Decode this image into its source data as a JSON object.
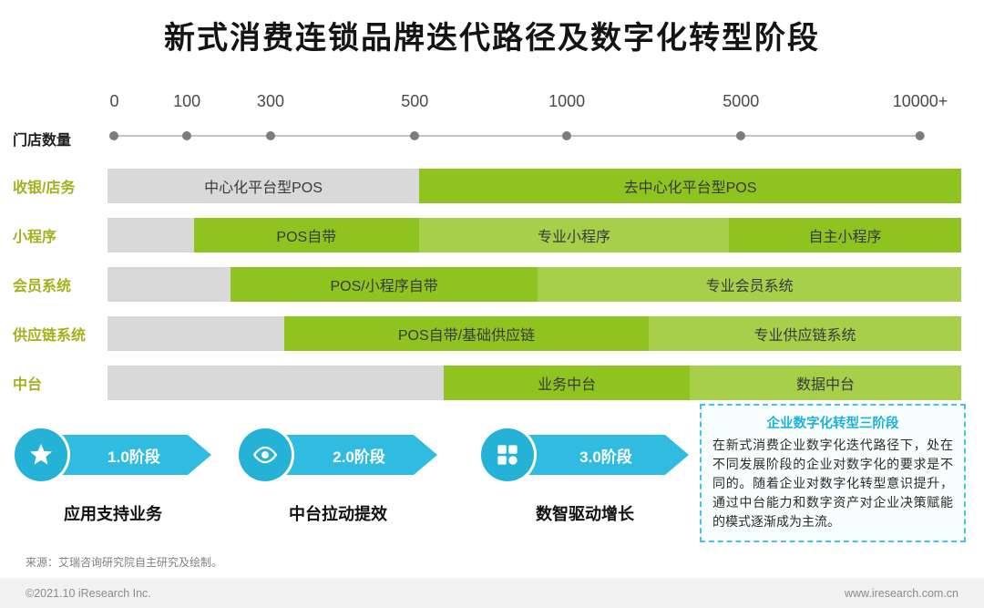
{
  "title": "新式消费连锁品牌迭代路径及数字化转型阶段",
  "colors": {
    "gray": "#d9d9d9",
    "green_bright": "#8fc320",
    "green_light": "#a7cf4a",
    "cyan": "#29b6d8",
    "olive": "#a3b11c"
  },
  "axis": {
    "label": "门店数量",
    "ticks": [
      {
        "value": "0",
        "pos_pct": 0.8
      },
      {
        "value": "100",
        "pos_pct": 9.3
      },
      {
        "value": "300",
        "pos_pct": 19.1
      },
      {
        "value": "500",
        "pos_pct": 36.0
      },
      {
        "value": "1000",
        "pos_pct": 53.8
      },
      {
        "value": "5000",
        "pos_pct": 74.2
      },
      {
        "value": "10000+",
        "pos_pct": 95.2
      }
    ]
  },
  "rows": [
    {
      "label": "收银/店务",
      "segments": [
        {
          "label": "中心化平台型POS",
          "width_pct": 36.5,
          "color": "gray"
        },
        {
          "label": "去中心化平台型POS",
          "width_pct": 63.5,
          "color": "green_bright"
        }
      ]
    },
    {
      "label": "小程序",
      "segments": [
        {
          "label": "",
          "width_pct": 10.1,
          "color": "gray"
        },
        {
          "label": "POS自带",
          "width_pct": 26.4,
          "color": "green_bright"
        },
        {
          "label": "专业小程序",
          "width_pct": 36.3,
          "color": "green_light"
        },
        {
          "label": "自主小程序",
          "width_pct": 27.2,
          "color": "green_bright"
        }
      ]
    },
    {
      "label": "会员系统",
      "segments": [
        {
          "label": "",
          "width_pct": 14.4,
          "color": "gray"
        },
        {
          "label": "POS/小程序自带",
          "width_pct": 36.0,
          "color": "green_bright"
        },
        {
          "label": "专业会员系统",
          "width_pct": 49.6,
          "color": "green_light"
        }
      ]
    },
    {
      "label": "供应链系统",
      "segments": [
        {
          "label": "",
          "width_pct": 20.7,
          "color": "gray"
        },
        {
          "label": "POS自带/基础供应链",
          "width_pct": 42.7,
          "color": "green_bright"
        },
        {
          "label": "专业供应链系统",
          "width_pct": 36.6,
          "color": "green_light"
        }
      ]
    },
    {
      "label": "中台",
      "segments": [
        {
          "label": "",
          "width_pct": 39.4,
          "color": "gray"
        },
        {
          "label": "业务中台",
          "width_pct": 28.8,
          "color": "green_bright"
        },
        {
          "label": "数据中台",
          "width_pct": 31.8,
          "color": "green_light"
        }
      ]
    }
  ],
  "stages": [
    {
      "badge": "1.0阶段",
      "icon": "star-icon",
      "caption": "应用支持业务"
    },
    {
      "badge": "2.0阶段",
      "icon": "eye-icon",
      "caption": "中台拉动提效"
    },
    {
      "badge": "3.0阶段",
      "icon": "grid-icon",
      "caption": "数智驱动增长"
    }
  ],
  "note": {
    "title": "企业数字化转型三阶段",
    "body": "在新式消费企业数字化迭代路径下，处在不同发展阶段的企业对数字化的要求是不同的。随着企业对数字化转型意识提升，通过中台能力和数字资产对企业决策赋能的模式逐渐成为主流。"
  },
  "source": "来源：艾瑞咨询研究院自主研究及绘制。",
  "footer": {
    "copyright": "©2021.10 iResearch Inc.",
    "website": "www.iresearch.com.cn"
  },
  "chart_data": {
    "type": "table",
    "title": "新式消费连锁品牌迭代路径及数字化转型阶段",
    "x_axis": {
      "label": "门店数量",
      "ticks": [
        "0",
        "100",
        "300",
        "500",
        "1000",
        "5000",
        "10000+"
      ],
      "scale": "store-count milestones, non-linear"
    },
    "rows": [
      {
        "category": "收银/店务",
        "segments": [
          {
            "label": "中心化平台型POS",
            "from": "0",
            "to": "500"
          },
          {
            "label": "去中心化平台型POS",
            "from": "500",
            "to": "10000+"
          }
        ]
      },
      {
        "category": "小程序",
        "segments": [
          {
            "label": "POS自带",
            "from": "100",
            "to": "500"
          },
          {
            "label": "专业小程序",
            "from": "500",
            "to": "5000"
          },
          {
            "label": "自主小程序",
            "from": "5000",
            "to": "10000+"
          }
        ]
      },
      {
        "category": "会员系统",
        "segments": [
          {
            "label": "POS/小程序自带",
            "from": "≈150",
            "to": "≈1000"
          },
          {
            "label": "专业会员系统",
            "from": "≈1000",
            "to": "10000+"
          }
        ]
      },
      {
        "category": "供应链系统",
        "segments": [
          {
            "label": "POS自带/基础供应链",
            "from": "300",
            "to": "≈2000"
          },
          {
            "label": "专业供应链系统",
            "from": "≈2000",
            "to": "10000+"
          }
        ]
      },
      {
        "category": "中台",
        "segments": [
          {
            "label": "业务中台",
            "from": "≈600",
            "to": "≈3500"
          },
          {
            "label": "数据中台",
            "from": "≈3500",
            "to": "10000+"
          }
        ]
      }
    ],
    "stages": [
      {
        "stage": "1.0阶段",
        "description": "应用支持业务"
      },
      {
        "stage": "2.0阶段",
        "description": "中台拉动提效"
      },
      {
        "stage": "3.0阶段",
        "description": "数智驱动增长"
      }
    ],
    "legend_position": "none",
    "grid": false
  }
}
